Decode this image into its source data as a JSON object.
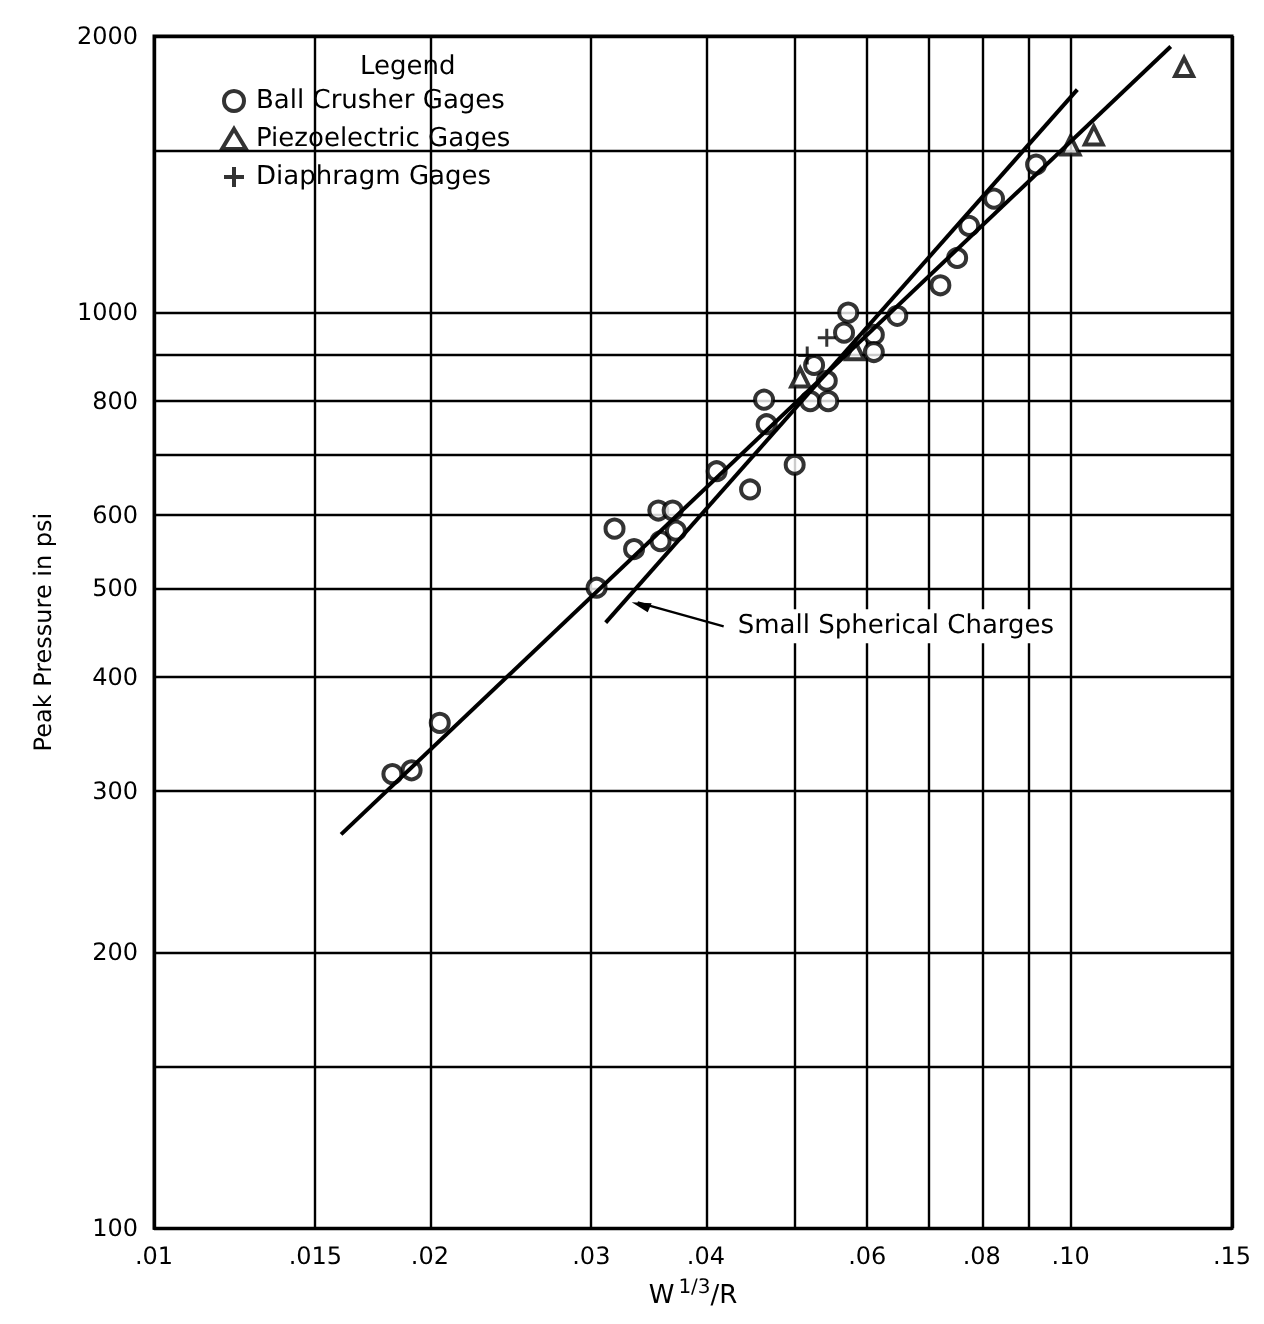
{
  "chart_data": {
    "type": "scatter",
    "xlabel": "W$^{1/3}$/R",
    "ylabel": "Peak Pressure in psi",
    "legend_title": "Legend",
    "legend": "top left",
    "grid": true,
    "log": "xy",
    "xlim": [
      0.01,
      0.15
    ],
    "ylim": [
      100,
      2000
    ],
    "xticks": [
      {
        "value": 0.01,
        "label": ".01"
      },
      {
        "value": 0.015,
        "label": ".015"
      },
      {
        "value": 0.02,
        "label": ".02"
      },
      {
        "value": 0.03,
        "label": ".03"
      },
      {
        "value": 0.04,
        "label": ".04"
      },
      {
        "value": 0.05,
        "label": null
      },
      {
        "value": 0.06,
        "label": ".06"
      },
      {
        "value": 0.07,
        "label": null
      },
      {
        "value": 0.08,
        "label": ".08"
      },
      {
        "value": 0.09,
        "label": null
      },
      {
        "value": 0.1,
        "label": ".10"
      },
      {
        "value": 0.15,
        "label": ".15"
      }
    ],
    "yticks": [
      100,
      {
        "value": 150,
        "label": null
      },
      200,
      300,
      400,
      500,
      600,
      {
        "value": 700,
        "label": null
      },
      800,
      {
        "value": 900,
        "label": null
      },
      1000,
      {
        "value": 1500,
        "label": null
      },
      2000
    ],
    "annotations": [
      {
        "text": "Small Spherical Charges",
        "x": 0.0332,
        "y": 482
      }
    ],
    "series": [
      {
        "name": "Ball Crusher Gages",
        "type": "scatter",
        "marker": "circle",
        "color": "#000000",
        "x": [
          0.0182,
          0.0191,
          0.0205,
          0.0304,
          0.0318,
          0.0334,
          0.0355,
          0.0368,
          0.0357,
          0.0371,
          0.0411,
          0.0447,
          0.05,
          0.0463,
          0.0466,
          0.0525,
          0.0542,
          0.052,
          0.0544,
          0.0572,
          0.0566,
          0.061,
          0.061,
          0.0647,
          0.0721,
          0.0752,
          0.0775,
          0.0825,
          0.0917
        ],
        "values": [
          313,
          316,
          356,
          500,
          580,
          551,
          607,
          607,
          562,
          577,
          670,
          640,
          681,
          802,
          754,
          875,
          841,
          799,
          799,
          998,
          949,
          944,
          904,
          990,
          1069,
          1145,
          1241,
          1329,
          1448
        ]
      },
      {
        "name": "Piezoelectric Gages",
        "type": "scatter",
        "marker": "triangle",
        "color": "#000000",
        "x": [
          0.0507,
          0.0582,
          0.1,
          0.106,
          0.133
        ],
        "values": [
          848,
          908,
          1519,
          1558,
          1850
        ]
      },
      {
        "name": "Diaphragm Gages",
        "type": "scatter",
        "marker": "cross",
        "color": "#000000",
        "x": [
          0.0516,
          0.0542
        ],
        "values": [
          896,
          937
        ]
      },
      {
        "type": "line",
        "marker": "none",
        "color": "#000000",
        "x": [
          0.016,
          0.1286
        ],
        "values": [
          269,
          1948
        ]
      },
      {
        "type": "line",
        "marker": "none",
        "color": "#000000",
        "x": [
          0.0311,
          0.1017
        ],
        "values": [
          458,
          1748
        ]
      }
    ]
  }
}
